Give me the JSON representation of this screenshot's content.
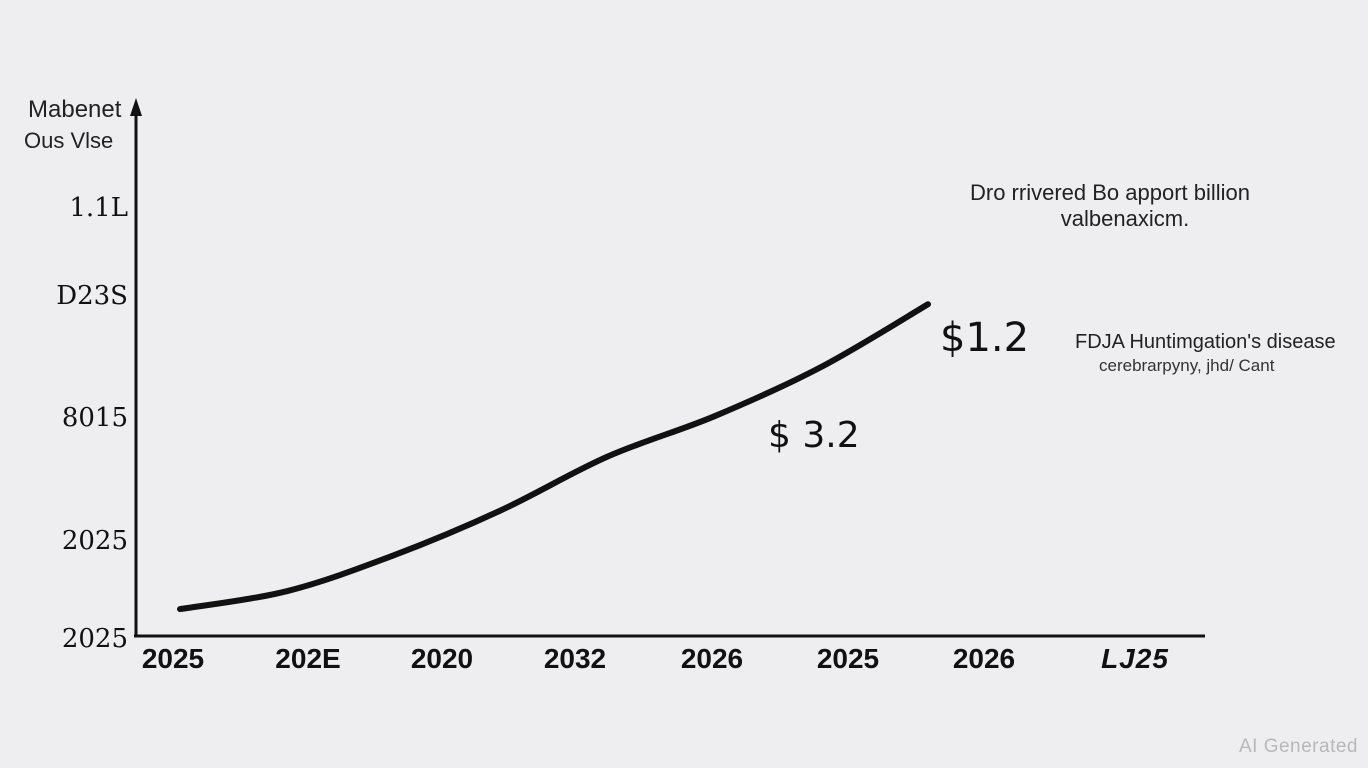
{
  "chart_data": {
    "type": "line",
    "ylabel": [
      "Mabenet",
      "Ous Vlse"
    ],
    "y_ticks": [
      "1.1L",
      "D23S",
      "8015",
      "2025",
      "2025"
    ],
    "x_ticks": [
      "2025",
      "202E",
      "2020",
      "2032",
      "2026",
      "2025",
      "2026",
      "LJ25"
    ],
    "series": [
      {
        "values": [
          0.3,
          0.5,
          0.9,
          1.4,
          2.0,
          2.45,
          3.0,
          3.7
        ]
      }
    ],
    "y_range": [
      0,
      6
    ],
    "data_labels": [
      "$1.2",
      "$ 3.2"
    ],
    "annotations": {
      "top_right": [
        "Dro rrivered Bo apport billion",
        "valbenaxicm."
      ],
      "side": [
        "FDJA Huntimgation's disease",
        "cerebrarpyny, jhd/ Cant"
      ]
    },
    "grid": false,
    "legend": "none"
  },
  "watermark": "AI Generated",
  "colors": {
    "background": "#eeeef0",
    "line": "#111111",
    "axis": "#111111"
  }
}
